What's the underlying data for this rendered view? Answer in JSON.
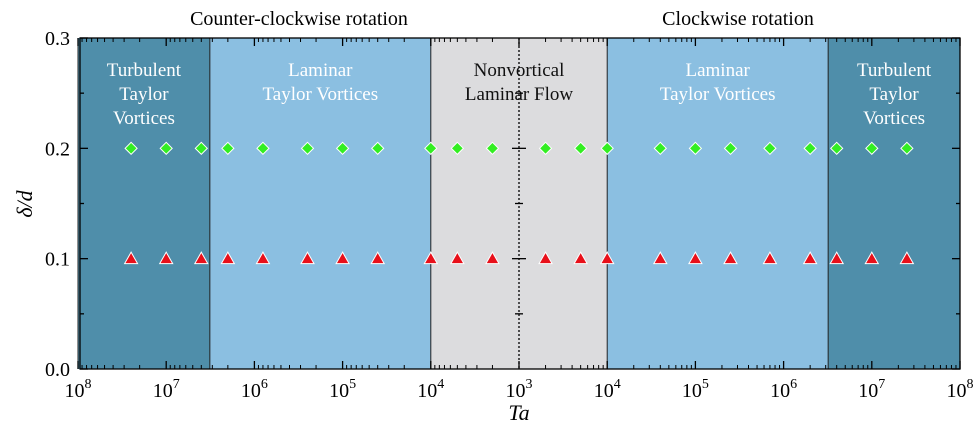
{
  "chart_data": {
    "type": "scatter",
    "x_scale": "log (mirrored about Ta = 10^3)",
    "xlabel": "Ta",
    "ylabel": "δ/d",
    "ylim": [
      0.0,
      0.3
    ],
    "y_ticks": [
      "0.0",
      "0.1",
      "0.2",
      "0.3"
    ],
    "x_ticks": [
      {
        "value": 100000000.0,
        "side": "ccw",
        "base": "10",
        "exp": "8"
      },
      {
        "value": 10000000.0,
        "side": "ccw",
        "base": "10",
        "exp": "7"
      },
      {
        "value": 1000000.0,
        "side": "ccw",
        "base": "10",
        "exp": "6"
      },
      {
        "value": 100000.0,
        "side": "ccw",
        "base": "10",
        "exp": "5"
      },
      {
        "value": 10000.0,
        "side": "ccw",
        "base": "10",
        "exp": "4"
      },
      {
        "value": 1000.0,
        "side": "center",
        "base": "10",
        "exp": "3"
      },
      {
        "value": 10000.0,
        "side": "cw",
        "base": "10",
        "exp": "4"
      },
      {
        "value": 100000.0,
        "side": "cw",
        "base": "10",
        "exp": "5"
      },
      {
        "value": 1000000.0,
        "side": "cw",
        "base": "10",
        "exp": "6"
      },
      {
        "value": 10000000.0,
        "side": "cw",
        "base": "10",
        "exp": "7"
      },
      {
        "value": 100000000.0,
        "side": "cw",
        "base": "10",
        "exp": "8"
      }
    ],
    "top_labels": {
      "ccw": "Counter-clockwise rotation",
      "cw": "Clockwise rotation"
    },
    "regions": [
      {
        "name": "turbulent-ccw",
        "side": "ccw",
        "from": 100000000.0,
        "to": 3200000.0,
        "color": "#4f8eaa",
        "lines": [
          "Turbulent",
          "Taylor",
          "Vortices"
        ]
      },
      {
        "name": "laminar-ccw",
        "side": "ccw",
        "from": 3200000.0,
        "to": 10000.0,
        "color": "#8bbfe1",
        "lines": [
          "Laminar",
          "Taylor Vortices"
        ]
      },
      {
        "name": "nonvortical",
        "side": "both",
        "from": 10000.0,
        "to": 10000.0,
        "color": "#dcdcde",
        "lines": [
          "Nonvortical",
          "Laminar Flow"
        ]
      },
      {
        "name": "laminar-cw",
        "side": "cw",
        "from": 10000.0,
        "to": 3200000.0,
        "color": "#8bbfe1",
        "lines": [
          "Laminar",
          "Taylor Vortices"
        ]
      },
      {
        "name": "turbulent-cw",
        "side": "cw",
        "from": 3200000.0,
        "to": 100000000.0,
        "color": "#4f8eaa",
        "lines": [
          "Turbulent",
          "Taylor",
          "Vortices"
        ]
      }
    ],
    "series": [
      {
        "marker": "diamond",
        "color": "#33ee22",
        "y": 0.2,
        "points": [
          {
            "side": "ccw",
            "ta": 25000000.0
          },
          {
            "side": "ccw",
            "ta": 10000000.0
          },
          {
            "side": "ccw",
            "ta": 4000000.0
          },
          {
            "side": "ccw",
            "ta": 2000000.0
          },
          {
            "side": "ccw",
            "ta": 800000.0
          },
          {
            "side": "ccw",
            "ta": 250000.0
          },
          {
            "side": "ccw",
            "ta": 100000.0
          },
          {
            "side": "ccw",
            "ta": 40000.0
          },
          {
            "side": "ccw",
            "ta": 10000.0
          },
          {
            "side": "ccw",
            "ta": 5000.0
          },
          {
            "side": "ccw",
            "ta": 2000.0
          },
          {
            "side": "cw",
            "ta": 2000.0
          },
          {
            "side": "cw",
            "ta": 5000.0
          },
          {
            "side": "cw",
            "ta": 10000.0
          },
          {
            "side": "cw",
            "ta": 40000.0
          },
          {
            "side": "cw",
            "ta": 100000.0
          },
          {
            "side": "cw",
            "ta": 250000.0
          },
          {
            "side": "cw",
            "ta": 700000.0
          },
          {
            "side": "cw",
            "ta": 2000000.0
          },
          {
            "side": "cw",
            "ta": 4000000.0
          },
          {
            "side": "cw",
            "ta": 10000000.0
          },
          {
            "side": "cw",
            "ta": 25000000.0
          }
        ]
      },
      {
        "marker": "triangle",
        "color": "#e8101a",
        "y": 0.1,
        "points": [
          {
            "side": "ccw",
            "ta": 25000000.0
          },
          {
            "side": "ccw",
            "ta": 10000000.0
          },
          {
            "side": "ccw",
            "ta": 4000000.0
          },
          {
            "side": "ccw",
            "ta": 2000000.0
          },
          {
            "side": "ccw",
            "ta": 800000.0
          },
          {
            "side": "ccw",
            "ta": 250000.0
          },
          {
            "side": "ccw",
            "ta": 100000.0
          },
          {
            "side": "ccw",
            "ta": 40000.0
          },
          {
            "side": "ccw",
            "ta": 10000.0
          },
          {
            "side": "ccw",
            "ta": 5000.0
          },
          {
            "side": "ccw",
            "ta": 2000.0
          },
          {
            "side": "cw",
            "ta": 2000.0
          },
          {
            "side": "cw",
            "ta": 5000.0
          },
          {
            "side": "cw",
            "ta": 10000.0
          },
          {
            "side": "cw",
            "ta": 40000.0
          },
          {
            "side": "cw",
            "ta": 100000.0
          },
          {
            "side": "cw",
            "ta": 250000.0
          },
          {
            "side": "cw",
            "ta": 700000.0
          },
          {
            "side": "cw",
            "ta": 2000000.0
          },
          {
            "side": "cw",
            "ta": 4000000.0
          },
          {
            "side": "cw",
            "ta": 10000000.0
          },
          {
            "side": "cw",
            "ta": 25000000.0
          }
        ]
      }
    ]
  }
}
